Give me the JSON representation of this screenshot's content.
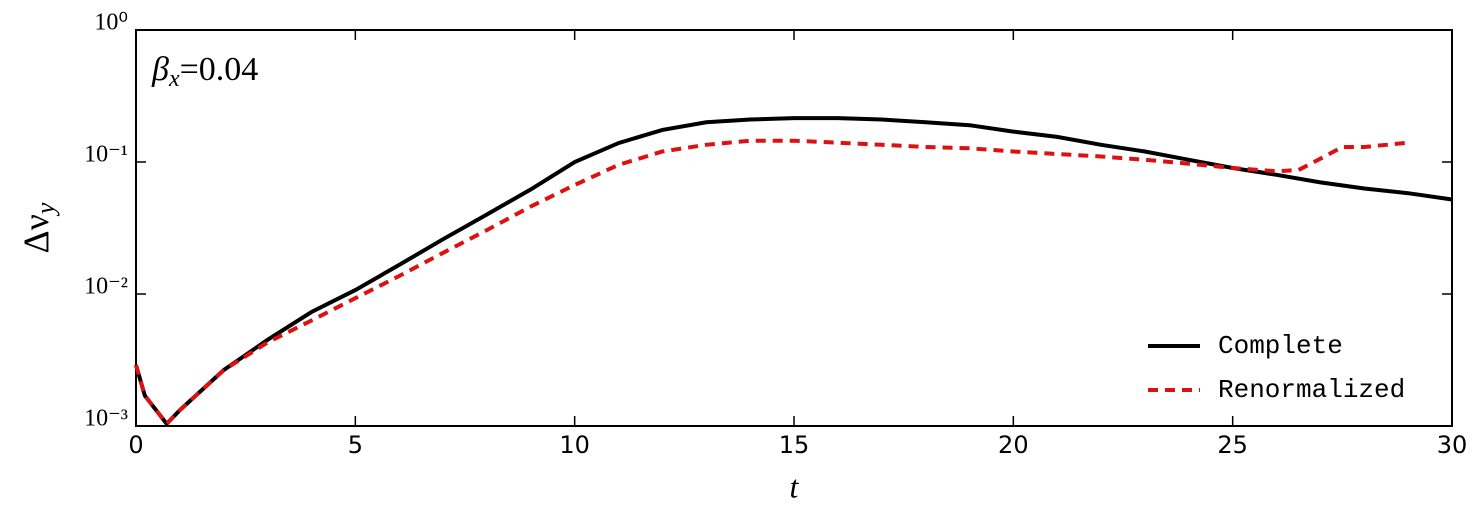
{
  "chart_data": {
    "type": "line",
    "xlabel": "t",
    "ylabel": {
      "main": "Δν",
      "sub": "y"
    },
    "annotation": {
      "symbol": "β",
      "sub": "x",
      "text": "=0.04"
    },
    "log_y": true,
    "legend": "lower right",
    "xlim": [
      0,
      30
    ],
    "xticks": [
      0,
      5,
      10,
      15,
      20,
      25,
      30
    ],
    "ylim": [
      0.001,
      1
    ],
    "yticks": [
      {
        "value": 0.001,
        "label": "10⁻³"
      },
      {
        "value": 0.01,
        "label": "10⁻²"
      },
      {
        "value": 0.1,
        "label": "10⁻¹"
      },
      {
        "value": 1,
        "label": "10⁰"
      }
    ],
    "series": [
      {
        "name": "Complete",
        "color": "#000000",
        "dash": false,
        "x": [
          0,
          0.2,
          0.7,
          1,
          2,
          3,
          4,
          5,
          6,
          7,
          8,
          9,
          10,
          11,
          12,
          13,
          14,
          15,
          16,
          17,
          18,
          19,
          20,
          21,
          22,
          23,
          24,
          25,
          26,
          27,
          28,
          29,
          30
        ],
        "values": [
          0.0029,
          0.0017,
          0.00104,
          0.00132,
          0.00265,
          0.0045,
          0.0073,
          0.0107,
          0.0166,
          0.026,
          0.04,
          0.062,
          0.1,
          0.139,
          0.175,
          0.2,
          0.21,
          0.215,
          0.215,
          0.21,
          0.2,
          0.19,
          0.17,
          0.155,
          0.135,
          0.12,
          0.104,
          0.09,
          0.08,
          0.07,
          0.063,
          0.058,
          0.052
        ]
      },
      {
        "name": "Renormalized",
        "color": "#dd1111",
        "dash": true,
        "x": [
          0,
          0.2,
          0.7,
          1,
          2,
          3,
          4,
          5,
          6,
          7,
          8,
          9,
          10,
          11,
          12,
          13,
          14,
          15,
          16,
          17,
          18,
          19,
          20,
          21,
          22,
          23,
          24,
          25,
          26,
          26.5,
          27,
          27.5,
          28,
          29
        ],
        "values": [
          0.0029,
          0.0017,
          0.00104,
          0.00132,
          0.00265,
          0.0043,
          0.0063,
          0.0093,
          0.0137,
          0.0205,
          0.0305,
          0.046,
          0.067,
          0.095,
          0.12,
          0.135,
          0.145,
          0.145,
          0.14,
          0.135,
          0.13,
          0.127,
          0.12,
          0.115,
          0.11,
          0.104,
          0.097,
          0.09,
          0.085,
          0.087,
          0.106,
          0.13,
          0.13,
          0.14
        ]
      }
    ]
  }
}
